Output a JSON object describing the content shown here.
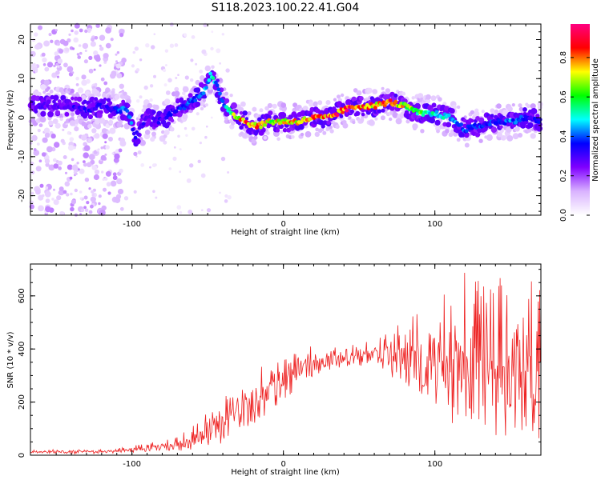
{
  "figure": {
    "title": "S118.2023.100.22.41.G04"
  },
  "chart_data": [
    {
      "type": "heatmap",
      "xlabel": "Height of straight line (km)",
      "ylabel": "Frequency (Hz)",
      "xlim": [
        -167,
        170
      ],
      "ylim": [
        -25,
        24
      ],
      "x_ticks": [
        -100,
        0,
        100
      ],
      "y_ticks": [
        -20,
        -10,
        0,
        10,
        20
      ],
      "x_tick_labels": [
        "-100",
        "0",
        "100"
      ],
      "y_tick_labels": [
        "-20",
        "-10",
        "0",
        "10",
        "20"
      ],
      "colorbar": {
        "label": "Normalized spectral amplitude",
        "range": [
          0.0,
          0.97
        ],
        "ticks": [
          0.0,
          0.2,
          0.4,
          0.6,
          0.8
        ],
        "tick_labels": [
          "0.0",
          "0.2",
          "0.4",
          "0.6",
          "0.8"
        ],
        "colormap": [
          "#ffffff",
          "#d9b3ff",
          "#8000ff",
          "#0000ff",
          "#00ffff",
          "#00ff00",
          "#ffff00",
          "#ff0000",
          "#ff0080"
        ]
      },
      "ridge": {
        "x": [
          -150,
          -140,
          -130,
          -120,
          -110,
          -103,
          -98,
          -90,
          -80,
          -72,
          -65,
          -58,
          -52,
          -48,
          -44,
          -40,
          -36,
          -30,
          -25,
          -20,
          -15,
          -10,
          -5,
          0,
          10,
          20,
          30,
          40,
          50,
          60,
          70,
          80,
          90,
          100,
          110,
          120,
          130,
          140,
          150,
          160,
          170
        ],
        "y": [
          3,
          3,
          2,
          3,
          2,
          2,
          -5,
          0,
          -1,
          2,
          3,
          5,
          7,
          11,
          8,
          4,
          2,
          0,
          -1,
          -2,
          -2,
          -1,
          -1,
          -1,
          -1,
          0,
          0,
          2,
          3,
          3,
          4,
          3,
          1,
          1,
          0,
          -3,
          -2,
          -1,
          -1,
          0,
          -1
        ],
        "amplitude": [
          0.3,
          0.35,
          0.35,
          0.35,
          0.4,
          0.5,
          0.4,
          0.3,
          0.35,
          0.35,
          0.4,
          0.45,
          0.5,
          0.55,
          0.5,
          0.45,
          0.6,
          0.8,
          0.9,
          0.9,
          0.85,
          0.75,
          0.8,
          0.8,
          0.85,
          0.9,
          0.9,
          0.95,
          0.9,
          0.85,
          0.9,
          0.75,
          0.65,
          0.55,
          0.5,
          0.45,
          0.4,
          0.4,
          0.45,
          0.4,
          0.35
        ]
      }
    },
    {
      "type": "line",
      "xlabel": "Height of straight line (km)",
      "ylabel": "SNR (10 * v/v)",
      "xlim": [
        -167,
        170
      ],
      "ylim": [
        0,
        720
      ],
      "x_ticks": [
        -100,
        0,
        100
      ],
      "y_ticks": [
        0,
        200,
        400,
        600
      ],
      "x_tick_labels": [
        "-100",
        "0",
        "100"
      ],
      "y_tick_labels": [
        "0",
        "200",
        "400",
        "600"
      ],
      "color": "#ee2222",
      "envelope": {
        "x": [
          -167,
          -150,
          -130,
          -110,
          -100,
          -90,
          -80,
          -70,
          -60,
          -50,
          -40,
          -30,
          -20,
          -15,
          -10,
          0,
          10,
          20,
          30,
          40,
          50,
          60,
          70,
          80,
          90,
          100,
          110,
          120,
          130,
          140,
          150,
          160,
          170
        ],
        "low": [
          5,
          5,
          5,
          8,
          10,
          10,
          12,
          15,
          20,
          30,
          40,
          60,
          80,
          100,
          160,
          200,
          260,
          300,
          320,
          330,
          330,
          320,
          300,
          250,
          180,
          150,
          120,
          80,
          60,
          50,
          50,
          50,
          60
        ],
        "high": [
          20,
          22,
          22,
          25,
          35,
          45,
          55,
          70,
          110,
          160,
          230,
          300,
          310,
          330,
          360,
          380,
          400,
          420,
          410,
          420,
          450,
          470,
          500,
          530,
          560,
          590,
          620,
          700,
          660,
          680,
          650,
          640,
          710
        ]
      }
    }
  ]
}
